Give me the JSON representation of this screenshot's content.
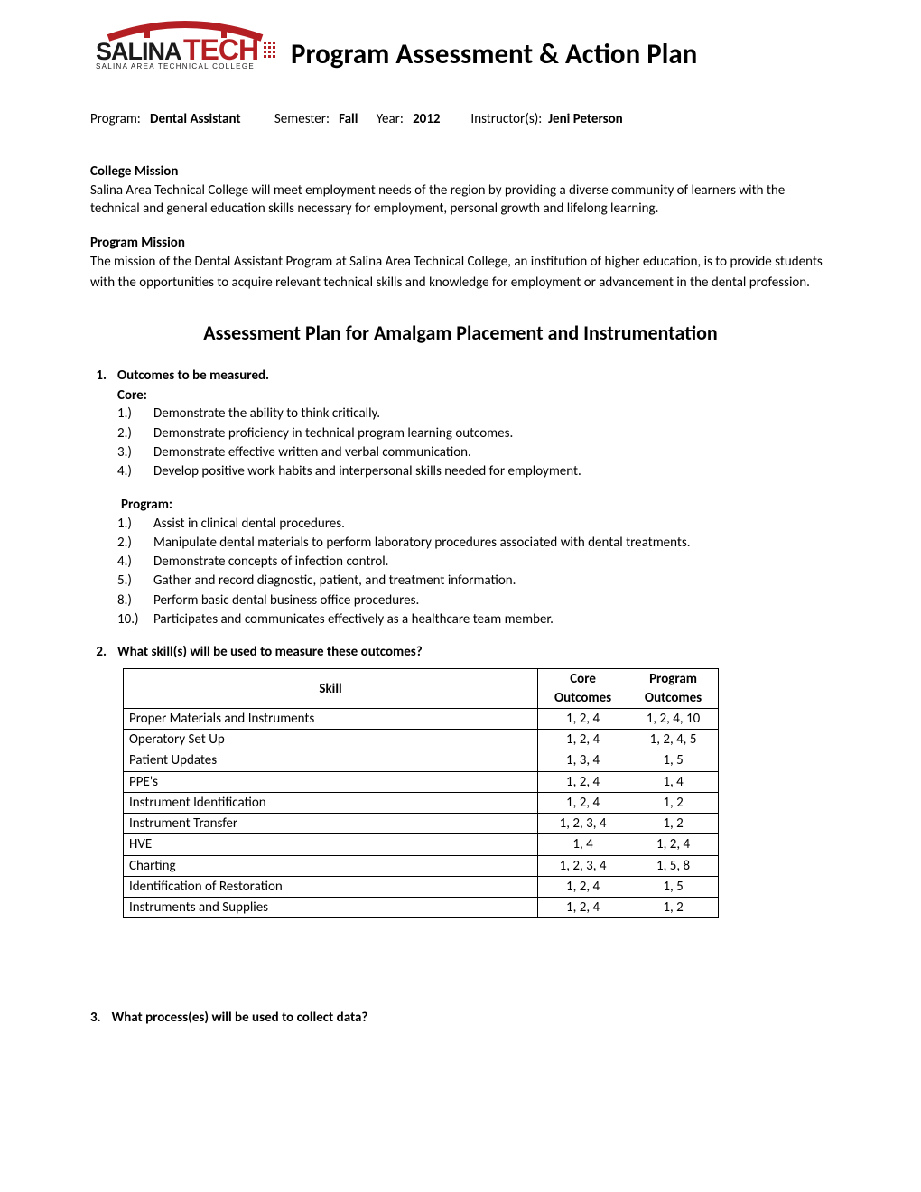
{
  "logo": {
    "brand_line1": "SALINA",
    "brand_bold": "TECH",
    "subline": "SALINA AREA TECHNICAL COLLEGE",
    "accent_color": "#b41f24",
    "text_color": "#1a1a1a"
  },
  "doc_title": "Program Assessment & Action Plan",
  "meta": {
    "program_label": "Program:",
    "program_value": "Dental Assistant",
    "semester_label": "Semester:",
    "semester_value": "Fall",
    "year_label": "Year:",
    "year_value": "2012",
    "instructor_label": "Instructor(s):",
    "instructor_value": "Jeni Peterson"
  },
  "college_mission": {
    "heading": "College Mission",
    "text": "Salina Area Technical College will meet employment needs of the region by providing a diverse community of learners with the technical and general education skills necessary for employment, personal growth and lifelong learning."
  },
  "program_mission": {
    "heading": "Program Mission",
    "text": "The mission of the Dental Assistant Program at Salina Area Technical College, an institution of higher education, is to provide students with the opportunities to acquire relevant technical skills and knowledge for employment or advancement in the dental profession."
  },
  "plan_title": "Assessment Plan for Amalgam Placement and Instrumentation",
  "q1": {
    "num": "1.",
    "heading": "Outcomes to be measured.",
    "core_label": "Core:",
    "core_items": [
      {
        "n": "1.)",
        "t": "Demonstrate the ability to think critically."
      },
      {
        "n": "2.)",
        "t": "Demonstrate proficiency in technical program learning outcomes."
      },
      {
        "n": "3.)",
        "t": "Demonstrate effective written and verbal communication."
      },
      {
        "n": "4.)",
        "t": "Develop positive work habits and interpersonal skills needed for employment."
      }
    ],
    "program_label": "Program:",
    "program_items": [
      {
        "n": "1.)",
        "t": " Assist in clinical dental procedures."
      },
      {
        "n": "2.)",
        "t": "Manipulate dental materials to perform laboratory procedures associated with dental treatments."
      },
      {
        "n": "4.)",
        "t": "Demonstrate concepts of infection control."
      },
      {
        "n": "5.)",
        "t": "Gather and record diagnostic, patient, and treatment information."
      },
      {
        "n": "8.)",
        "t": "Perform basic dental business office procedures."
      },
      {
        "n": "10.)",
        "t": "Participates and communicates effectively as a healthcare team member."
      }
    ]
  },
  "q2": {
    "num": "2.",
    "heading": "What skill(s) will be used to measure these outcomes?",
    "headers": {
      "skill": "Skill",
      "core": "Core Outcomes",
      "program": "Program Outcomes"
    },
    "rows": [
      {
        "skill": "Proper Materials and Instruments",
        "core": "1, 2, 4",
        "program": "1, 2, 4, 10"
      },
      {
        "skill": "Operatory Set Up",
        "core": "1, 2, 4",
        "program": "1, 2, 4, 5"
      },
      {
        "skill": "Patient Updates",
        "core": "1, 3, 4",
        "program": "1, 5"
      },
      {
        "skill": "PPE's",
        "core": "1, 2, 4",
        "program": "1, 4"
      },
      {
        "skill": "Instrument Identification",
        "core": "1, 2, 4",
        "program": "1, 2"
      },
      {
        "skill": "Instrument Transfer",
        "core": "1, 2, 3, 4",
        "program": "1, 2"
      },
      {
        "skill": "HVE",
        "core": "1, 4",
        "program": "1, 2, 4"
      },
      {
        "skill": "Charting",
        "core": "1, 2, 3, 4",
        "program": "1, 5, 8"
      },
      {
        "skill": "Identification of Restoration",
        "core": "1, 2, 4",
        "program": "1, 5"
      },
      {
        "skill": "Instruments and Supplies",
        "core": "1, 2, 4",
        "program": "1, 2"
      }
    ]
  },
  "q3": {
    "num": "3.",
    "heading": "What process(es) will be used to collect data?"
  }
}
